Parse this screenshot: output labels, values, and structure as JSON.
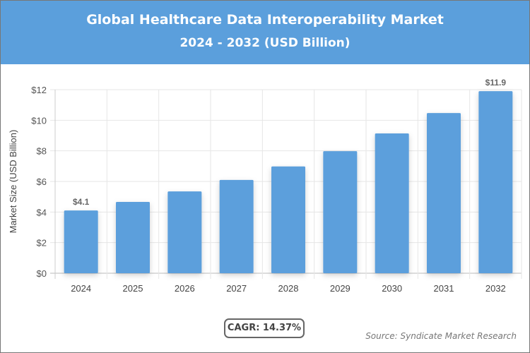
{
  "header": {
    "title": "Global Healthcare Data Interoperability Market",
    "subtitle": "2024 - 2032 (USD Billion)"
  },
  "colors": {
    "header": "#5b9fdc",
    "bar": "#5b9fdc"
  },
  "chart_data": {
    "type": "bar",
    "title": "Global Healthcare Data Interoperability Market",
    "subtitle": "2024 - 2032 (USD Billion)",
    "xlabel": "",
    "ylabel": "Market Size (USD Billion)",
    "categories": [
      "2024",
      "2025",
      "2026",
      "2027",
      "2028",
      "2029",
      "2030",
      "2031",
      "2032"
    ],
    "values": [
      4.1,
      4.66,
      5.35,
      6.1,
      6.98,
      7.98,
      9.14,
      10.47,
      11.9
    ],
    "data_labels": {
      "0": "$4.1",
      "8": "$11.9"
    },
    "ylim": [
      0,
      12
    ],
    "yticks": [
      0,
      2,
      4,
      6,
      8,
      10,
      12
    ],
    "ytick_labels": [
      "$0",
      "$2",
      "$4",
      "$6",
      "$8",
      "$10",
      "$12"
    ],
    "grid": true,
    "legend": "none"
  },
  "footer": {
    "cagr": "CAGR: 14.37%",
    "source": "Source: Syndicate Market Research"
  }
}
